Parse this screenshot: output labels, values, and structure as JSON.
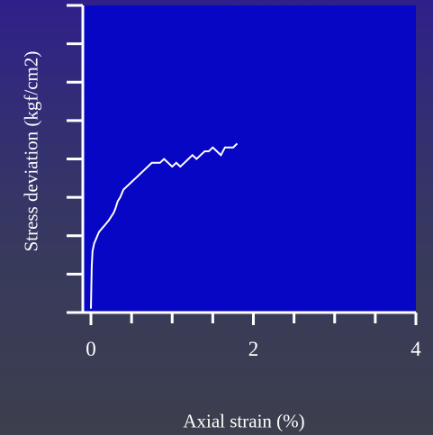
{
  "chart_data": {
    "type": "line",
    "title": "",
    "xlabel": "Axial strain (%)",
    "ylabel": "Stress deviation (kgf/cm2)",
    "xlim": [
      -0.1,
      4
    ],
    "ylim": [
      0,
      8
    ],
    "x_ticks": [
      0,
      2,
      4
    ],
    "x_tick_labels": [
      "0",
      "2",
      "4"
    ],
    "y_ticks": [
      0,
      1,
      2,
      3,
      4,
      5,
      6,
      7,
      8
    ],
    "y_tick_labels": [],
    "grid": false,
    "legend": "none",
    "colors": {
      "plot_background": "#0606c4",
      "axes": "#ffffff",
      "series": "#ffffff"
    },
    "series": [
      {
        "x": [
          0.0,
          0.01,
          0.02,
          0.04,
          0.06,
          0.1,
          0.14,
          0.18,
          0.22,
          0.25,
          0.28,
          0.3,
          0.33,
          0.36,
          0.4,
          0.45,
          0.5,
          0.55,
          0.6,
          0.65,
          0.7,
          0.75,
          0.8,
          0.85,
          0.9,
          0.95,
          1.0,
          1.05,
          1.1,
          1.15,
          1.2,
          1.25,
          1.3,
          1.35,
          1.4,
          1.45,
          1.5,
          1.55,
          1.6,
          1.65,
          1.7,
          1.75,
          1.8
        ],
        "y": [
          0.1,
          1.2,
          1.6,
          1.8,
          1.9,
          2.1,
          2.2,
          2.3,
          2.4,
          2.5,
          2.6,
          2.7,
          2.9,
          3.0,
          3.2,
          3.3,
          3.4,
          3.5,
          3.6,
          3.7,
          3.8,
          3.9,
          3.9,
          3.9,
          4.0,
          3.9,
          3.8,
          3.9,
          3.8,
          3.9,
          4.0,
          4.1,
          4.0,
          4.1,
          4.2,
          4.2,
          4.3,
          4.2,
          4.1,
          4.3,
          4.3,
          4.3,
          4.4
        ]
      }
    ]
  }
}
